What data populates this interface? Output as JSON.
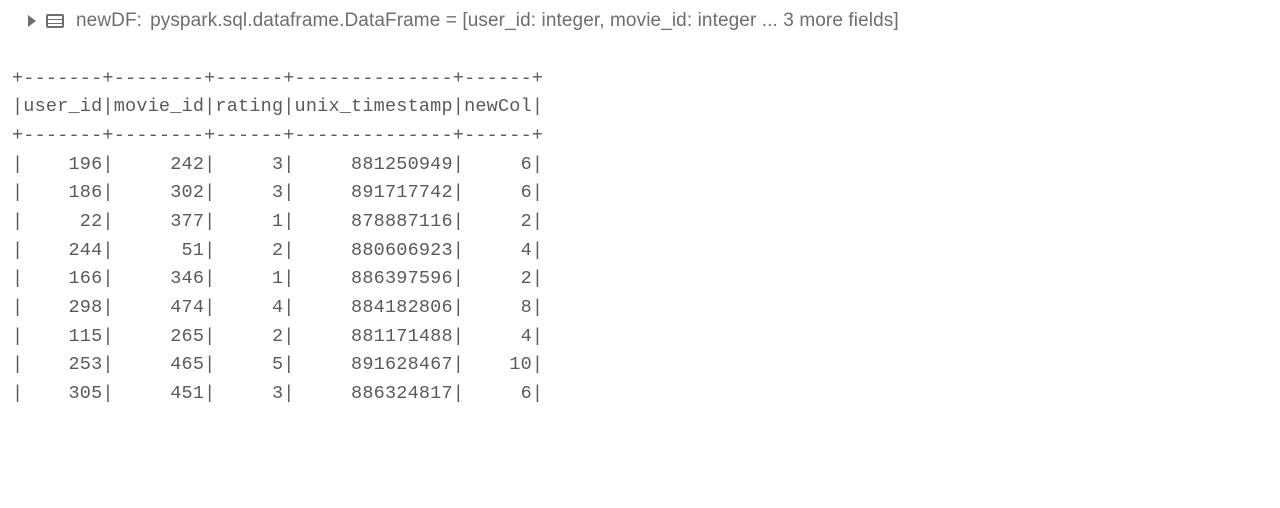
{
  "schema": {
    "df_name": "newDF:",
    "type_string": "pyspark.sql.dataframe.DataFrame = [user_id: integer, movie_id: integer ... 3 more fields]"
  },
  "table": {
    "columns": [
      {
        "name": "user_id",
        "width": 7
      },
      {
        "name": "movie_id",
        "width": 8
      },
      {
        "name": "rating",
        "width": 6
      },
      {
        "name": "unix_timestamp",
        "width": 14
      },
      {
        "name": "newCol",
        "width": 6
      }
    ],
    "rows": [
      {
        "user_id": "196",
        "movie_id": "242",
        "rating": "3",
        "unix_timestamp": "881250949",
        "newCol": "6"
      },
      {
        "user_id": "186",
        "movie_id": "302",
        "rating": "3",
        "unix_timestamp": "891717742",
        "newCol": "6"
      },
      {
        "user_id": "22",
        "movie_id": "377",
        "rating": "1",
        "unix_timestamp": "878887116",
        "newCol": "2"
      },
      {
        "user_id": "244",
        "movie_id": "51",
        "rating": "2",
        "unix_timestamp": "880606923",
        "newCol": "4"
      },
      {
        "user_id": "166",
        "movie_id": "346",
        "rating": "1",
        "unix_timestamp": "886397596",
        "newCol": "2"
      },
      {
        "user_id": "298",
        "movie_id": "474",
        "rating": "4",
        "unix_timestamp": "884182806",
        "newCol": "8"
      },
      {
        "user_id": "115",
        "movie_id": "265",
        "rating": "2",
        "unix_timestamp": "881171488",
        "newCol": "4"
      },
      {
        "user_id": "253",
        "movie_id": "465",
        "rating": "5",
        "unix_timestamp": "891628467",
        "newCol": "10"
      },
      {
        "user_id": "305",
        "movie_id": "451",
        "rating": "3",
        "unix_timestamp": "886324817",
        "newCol": "6"
      }
    ],
    "style": {
      "font_family": "monospace",
      "text_color": "#5a5a5a",
      "background_color": "#ffffff"
    }
  }
}
